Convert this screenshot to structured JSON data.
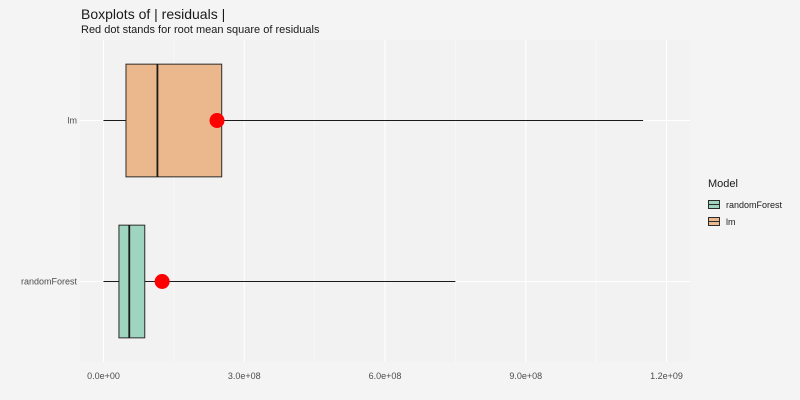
{
  "chart_data": {
    "type": "boxplot",
    "title": "Boxplots of | residuals |",
    "subtitle": "Red dot stands for root mean square of residuals",
    "xlabel": "",
    "ylabel": "",
    "xlim": [
      -50000000.0,
      1250000000.0
    ],
    "x_ticks": [
      0,
      300000000,
      600000000,
      900000000,
      1200000000
    ],
    "x_tick_labels": [
      "0.0e+00",
      "3.0e+08",
      "6.0e+08",
      "9.0e+08",
      "1.2e+09"
    ],
    "categories": [
      "randomForest",
      "lm"
    ],
    "series": [
      {
        "name": "randomForest",
        "color": "#9ed4c0",
        "whisker_low": 0,
        "q1": 33000000,
        "median": 55000000,
        "q3": 88000000,
        "whisker_high": 750000000,
        "rmse": 125000000
      },
      {
        "name": "lm",
        "color": "#ebb88d",
        "whisker_low": 0,
        "q1": 48000000,
        "median": 115000000,
        "q3": 252000000,
        "whisker_high": 1150000000,
        "rmse": 242000000
      }
    ],
    "rmse_color": "#ff0000",
    "grid": true,
    "legend": {
      "title": "Model",
      "position": "right",
      "entries": [
        "randomForest",
        "lm"
      ]
    }
  }
}
